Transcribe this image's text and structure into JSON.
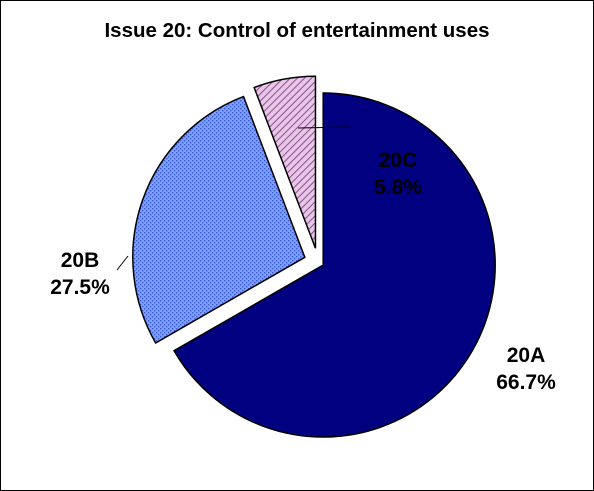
{
  "chart_data": {
    "type": "pie",
    "title": "Issue 20: Control of entertainment uses",
    "slices": [
      {
        "category": "20A",
        "percent_label": "66.7%",
        "value": 66.7,
        "color": "#000080",
        "pattern": "solid"
      },
      {
        "category": "20B",
        "percent_label": "27.5%",
        "value": 27.5,
        "color": "#7F9FFF",
        "pattern": "dotted"
      },
      {
        "category": "20C",
        "percent_label": "5.8%",
        "value": 5.8,
        "color": "#CC99CC",
        "pattern": "diagonal-hatch"
      }
    ],
    "exploded": true,
    "legend": "none",
    "data_labels": "outside"
  }
}
